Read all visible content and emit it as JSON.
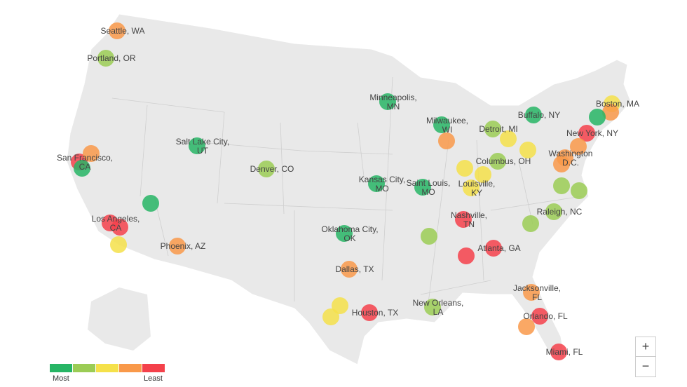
{
  "colors": {
    "1": "#27b565",
    "2": "#9bcc55",
    "3": "#f5e14a",
    "4": "#f9994a",
    "5": "#f4414b"
  },
  "legend": {
    "most": "Most",
    "least": "Least"
  },
  "zoom": {
    "in": "+",
    "out": "−"
  },
  "cities": [
    {
      "name": "Seattle, WA",
      "level": 4
    },
    {
      "name": "Portland, OR",
      "level": 2
    },
    {
      "name": "San Francisco, CA",
      "level": 5
    },
    {
      "name": "",
      "level": 4
    },
    {
      "name": "",
      "level": 1
    },
    {
      "name": "Salt Lake City, UT",
      "level": 1
    },
    {
      "name": "Denver, CO",
      "level": 2
    },
    {
      "name": "",
      "level": 1
    },
    {
      "name": "Los Angeles, CA",
      "level": 5
    },
    {
      "name": "",
      "level": 5
    },
    {
      "name": "",
      "level": 3
    },
    {
      "name": "Phoenix, AZ",
      "level": 4
    },
    {
      "name": "Minneapolis, MN",
      "level": 1
    },
    {
      "name": "Kansas City, MO",
      "level": 1
    },
    {
      "name": "Saint Louis, MO",
      "level": 1
    },
    {
      "name": "Oklahoma City, OK",
      "level": 1
    },
    {
      "name": "Dallas, TX",
      "level": 4
    },
    {
      "name": "Houston, TX",
      "level": 5
    },
    {
      "name": "",
      "level": 3
    },
    {
      "name": "",
      "level": 3
    },
    {
      "name": "New Orleans, LA",
      "level": 2
    },
    {
      "name": "",
      "level": 2
    },
    {
      "name": "Nashville, TN",
      "level": 5
    },
    {
      "name": "Atlanta, GA",
      "level": 5
    },
    {
      "name": "",
      "level": 5
    },
    {
      "name": "Milwaukee, WI",
      "level": 1
    },
    {
      "name": "",
      "level": 4
    },
    {
      "name": "Detroit, MI",
      "level": 2
    },
    {
      "name": "",
      "level": 3
    },
    {
      "name": "",
      "level": 3
    },
    {
      "name": "",
      "level": 3
    },
    {
      "name": "Louisville, KY",
      "level": 3
    },
    {
      "name": "Columbus, OH",
      "level": 2
    },
    {
      "name": "",
      "level": 3
    },
    {
      "name": "Buffalo, NY",
      "level": 1
    },
    {
      "name": "Boston, MA",
      "level": 3
    },
    {
      "name": "",
      "level": 4
    },
    {
      "name": "",
      "level": 1
    },
    {
      "name": "New York, NY",
      "level": 5
    },
    {
      "name": "",
      "level": 4
    },
    {
      "name": "Washington D.C.",
      "level": 4
    },
    {
      "name": "",
      "level": 4
    },
    {
      "name": "",
      "level": 2
    },
    {
      "name": "",
      "level": 2
    },
    {
      "name": "Raleigh, NC",
      "level": 2
    },
    {
      "name": "",
      "level": 2
    },
    {
      "name": "Jacksonville, FL",
      "level": 4
    },
    {
      "name": "Orlando, FL",
      "level": 5
    },
    {
      "name": "",
      "level": 4
    },
    {
      "name": "Miami, FL",
      "level": 5
    }
  ]
}
